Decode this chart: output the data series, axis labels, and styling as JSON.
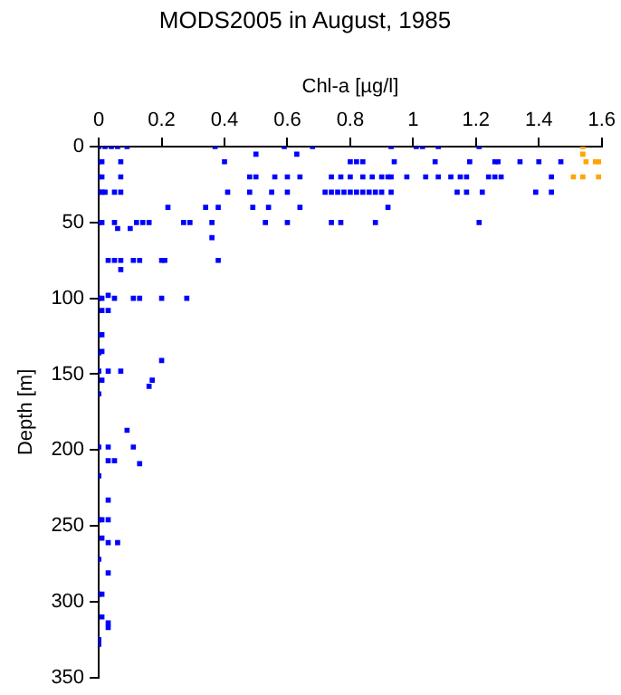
{
  "chart_data": {
    "type": "scatter",
    "title": "MODS2005 in August, 1985",
    "xlabel": "Chl-a [µg/l]",
    "ylabel": "Depth [m]",
    "xlim": [
      0,
      1.6
    ],
    "xticks": [
      0,
      0.2,
      0.4,
      0.6,
      0.8,
      1,
      1.2,
      1.4,
      1.6
    ],
    "ylim": [
      350,
      0
    ],
    "yticks": [
      0,
      50,
      100,
      150,
      200,
      250,
      300,
      350
    ],
    "grid": false,
    "legend": false,
    "marker": "square",
    "series": [
      {
        "color": "#0000ff",
        "x": [
          0,
          0.02,
          0.04,
          0.06,
          0.09,
          0.37,
          0.59,
          0.68,
          0.93,
          1.01,
          1.03,
          1.08,
          1.21,
          0.5,
          0.63,
          0,
          0.01,
          0.07,
          0.4,
          0.8,
          0.82,
          0.84,
          0.94,
          1.07,
          1.18,
          1.26,
          1.27,
          1.34,
          1.4,
          1.47,
          0,
          0.01,
          0.07,
          0.48,
          0.5,
          0.56,
          0.6,
          0.64,
          0.74,
          0.77,
          0.8,
          0.84,
          0.87,
          0.9,
          0.92,
          0.93,
          0.98,
          1.04,
          1.08,
          1.12,
          1.15,
          1.17,
          1.24,
          1.26,
          1.28,
          1.44,
          0,
          0.01,
          0.02,
          0.05,
          0.07,
          0.41,
          0.48,
          0.55,
          0.6,
          0.72,
          0.74,
          0.76,
          0.78,
          0.8,
          0.82,
          0.84,
          0.86,
          0.88,
          0.9,
          0.93,
          1.14,
          1.17,
          1.22,
          1.39,
          1.44,
          0.22,
          0.34,
          0.38,
          0.49,
          0.54,
          0.64,
          0.92,
          0,
          0.01,
          0.05,
          0.12,
          0.14,
          0.16,
          0.27,
          0.29,
          0.36,
          0.53,
          0.6,
          0.74,
          0.77,
          0.88,
          1.21,
          0.06,
          0.1,
          0.36,
          0.03,
          0.05,
          0.07,
          0.11,
          0.13,
          0.2,
          0.21,
          0.38,
          0.07,
          0.03,
          0,
          0.01,
          0.05,
          0.11,
          0.13,
          0.2,
          0.28,
          0.01,
          0.03,
          0,
          0.01,
          0.01,
          0,
          0.2,
          0,
          0.03,
          0.07,
          0.01,
          0.17,
          0.16,
          0,
          0.09,
          0,
          0.03,
          0.11,
          0.03,
          0.05,
          0.13,
          0,
          0.03,
          0,
          0.01,
          0.03,
          0.01,
          0.03,
          0.06,
          0,
          0.03,
          0,
          0.01,
          0.01,
          0.03,
          0.03,
          0,
          0
        ],
        "values": [
          0,
          0,
          0,
          0,
          0,
          0,
          0,
          0,
          0,
          0,
          0,
          0,
          0,
          5,
          5,
          10,
          10,
          10,
          10,
          10,
          10,
          10,
          10,
          10,
          10,
          10,
          10,
          10,
          10,
          10,
          20,
          20,
          20,
          20,
          20,
          20,
          20,
          20,
          20,
          20,
          20,
          20,
          20,
          20,
          20,
          20,
          20,
          20,
          20,
          20,
          20,
          20,
          20,
          20,
          20,
          20,
          30,
          30,
          30,
          30,
          30,
          30,
          30,
          30,
          30,
          30,
          30,
          30,
          30,
          30,
          30,
          30,
          30,
          30,
          30,
          30,
          30,
          30,
          30,
          30,
          30,
          40,
          40,
          40,
          40,
          40,
          40,
          40,
          50,
          50,
          50,
          50,
          50,
          50,
          50,
          50,
          50,
          50,
          50,
          50,
          50,
          50,
          50,
          54,
          54,
          60,
          75,
          75,
          75,
          75,
          75,
          75,
          75,
          75,
          81,
          98,
          100,
          100,
          100,
          100,
          100,
          100,
          100,
          108,
          108,
          124,
          124,
          135,
          136,
          141,
          148,
          148,
          148,
          154,
          154,
          158,
          163,
          187,
          198,
          198,
          198,
          207,
          207,
          209,
          217,
          233,
          246,
          246,
          246,
          258,
          261,
          261,
          272,
          281,
          295,
          295,
          310,
          314,
          317,
          325,
          328
        ]
      },
      {
        "color": "#ffa500",
        "x": [
          1.54,
          1.54,
          1.55,
          1.58,
          1.59,
          1.51,
          1.54,
          1.59
        ],
        "values": [
          0,
          5,
          10,
          10,
          10,
          20,
          20,
          20
        ]
      }
    ]
  }
}
